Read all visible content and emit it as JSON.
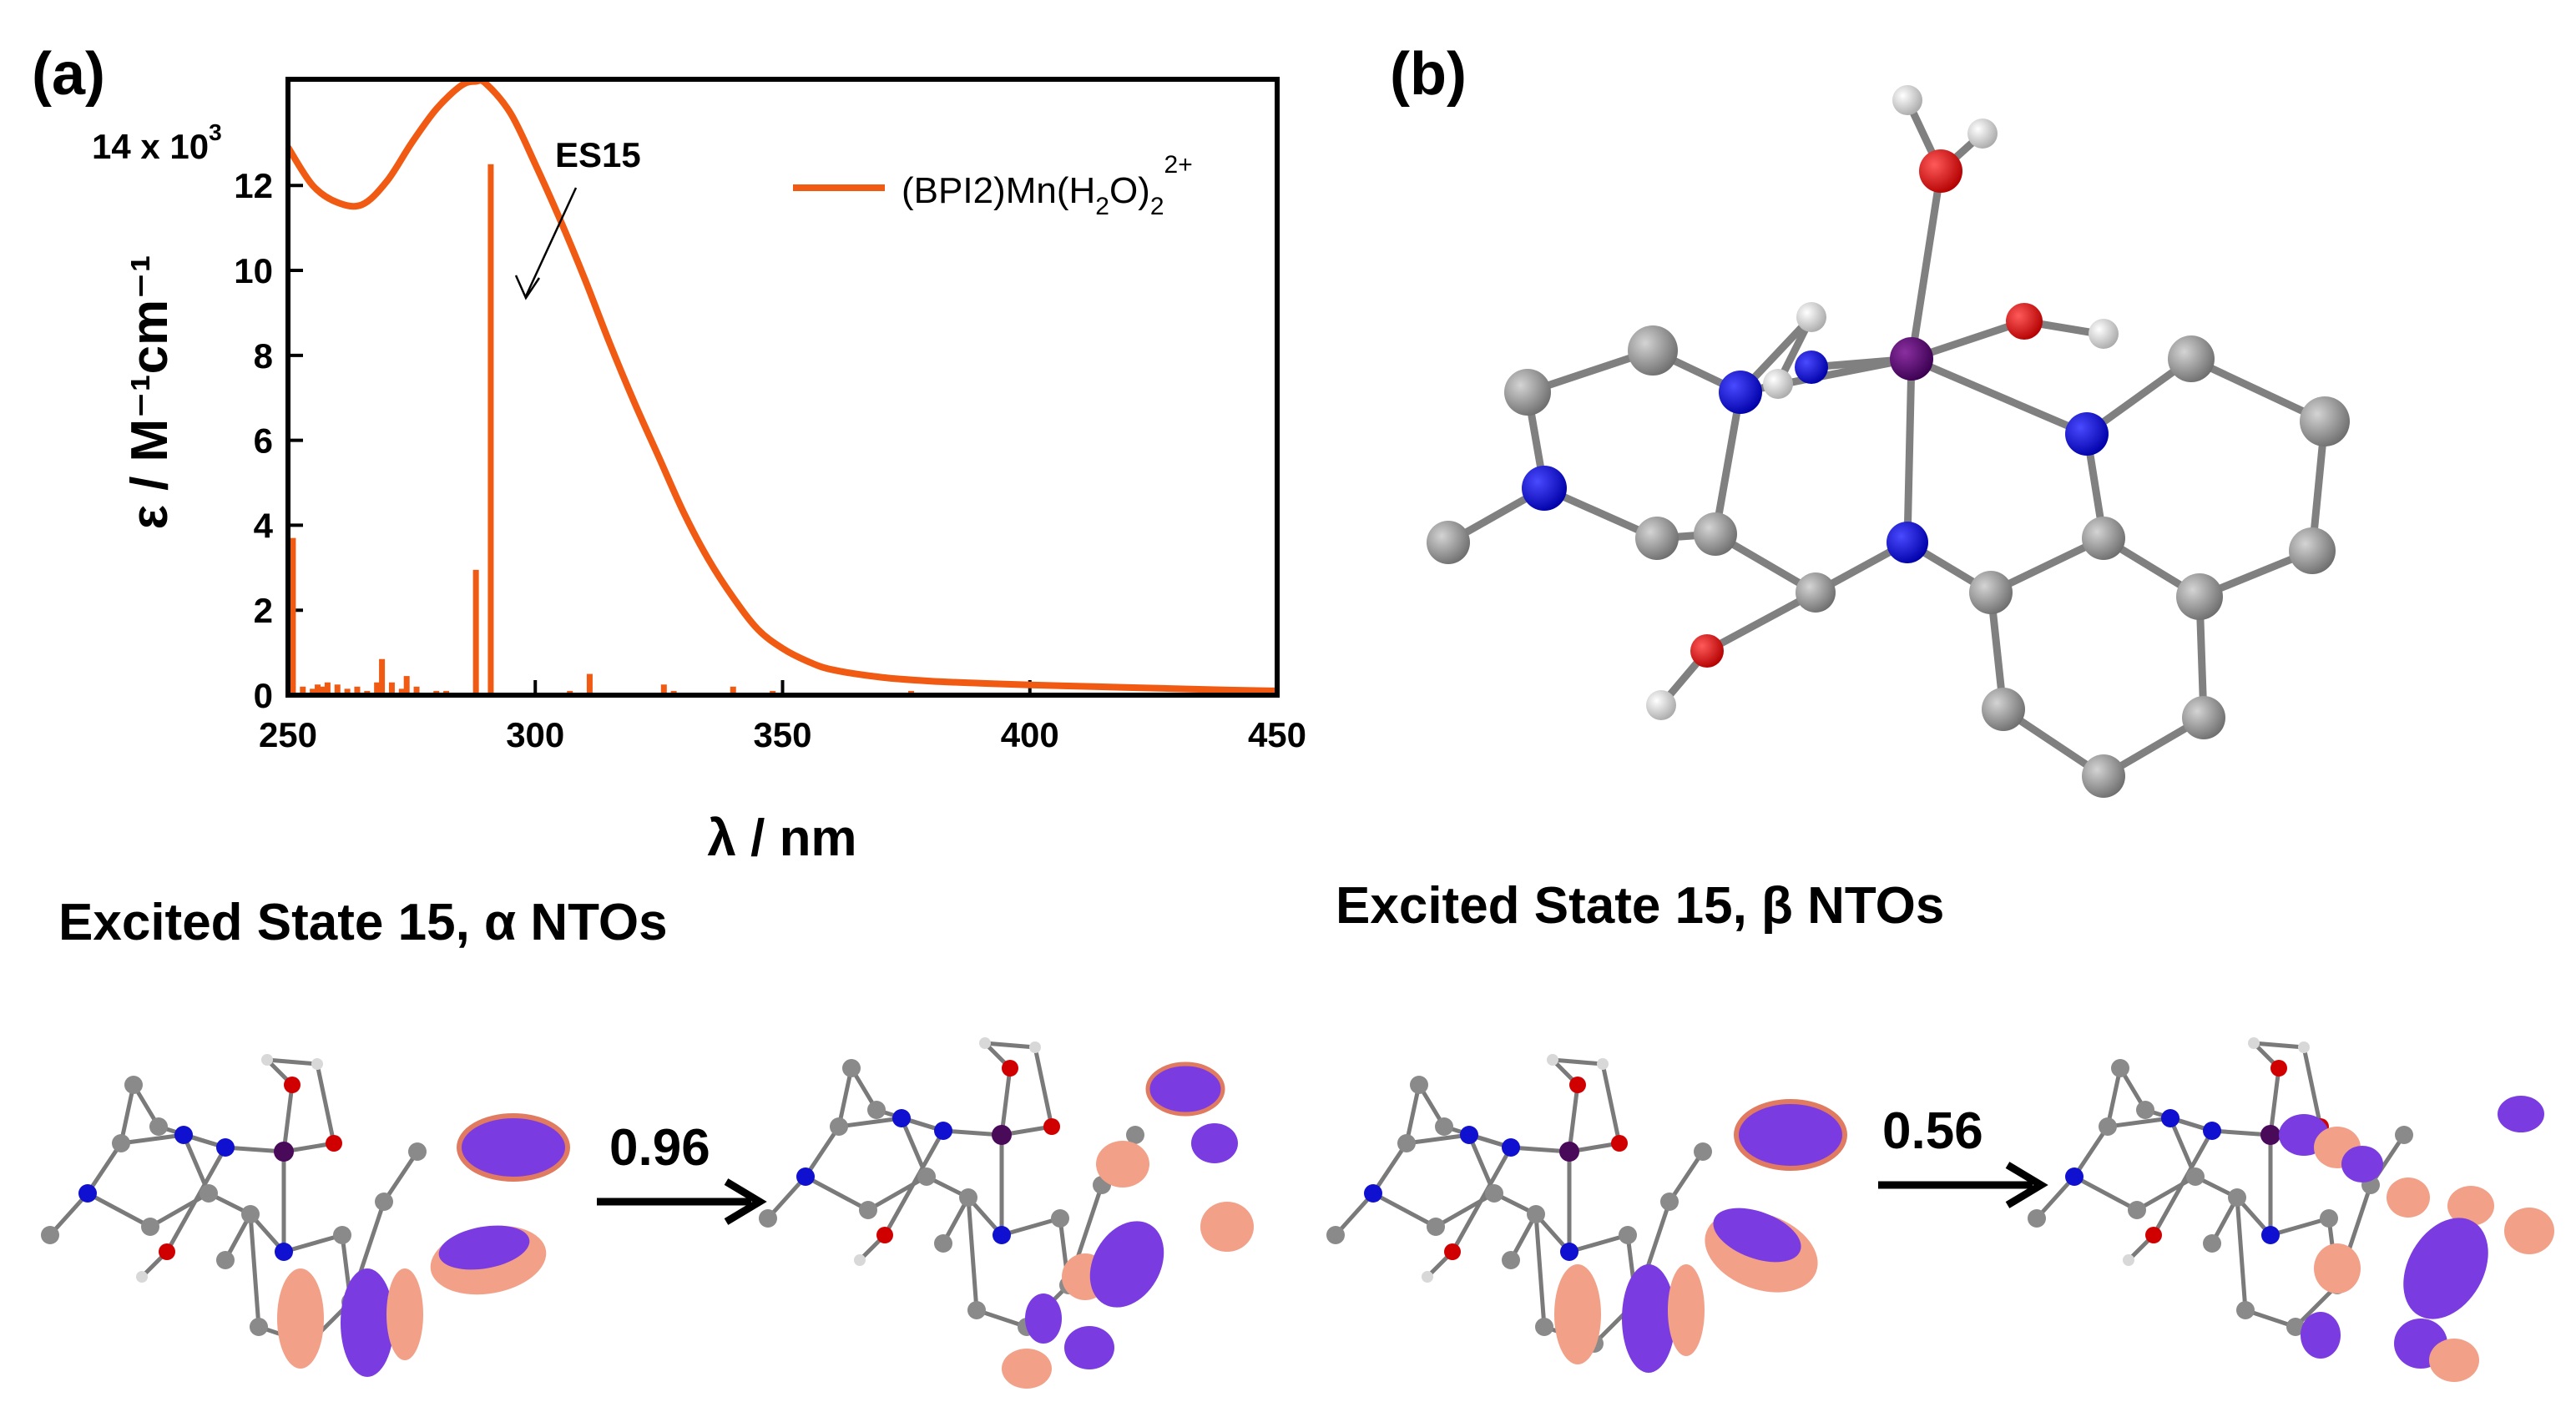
{
  "panels": {
    "a_label": "(a)",
    "b_label": "(b)"
  },
  "chart_data": {
    "type": "line",
    "xlabel": "λ / nm",
    "ylabel": "ε / M⁻¹cm⁻¹",
    "y_multiplier": "14 x 10",
    "y_multiplier_exp": "3",
    "xlim": [
      250,
      450
    ],
    "ylim": [
      0,
      14.5
    ],
    "xticks": [
      250,
      300,
      350,
      400,
      450
    ],
    "yticks": [
      0,
      2,
      4,
      6,
      8,
      10,
      12
    ],
    "legend": {
      "position": "top-right",
      "base": "(BPI2)Mn(H",
      "sub1": "2",
      "mid": "O)",
      "sub2": "2",
      "sup": "2+"
    },
    "series": [
      {
        "color": "#f05a12",
        "x": [
          250,
          255,
          260,
          265,
          270,
          275,
          280,
          285,
          288,
          290,
          295,
          300,
          305,
          310,
          315,
          320,
          325,
          330,
          335,
          340,
          345,
          350,
          355,
          360,
          370,
          380,
          390,
          400,
          420,
          440,
          450
        ],
        "y": [
          12.9,
          12.0,
          11.6,
          11.55,
          12.1,
          13.0,
          13.8,
          14.35,
          14.45,
          14.4,
          13.7,
          12.5,
          11.2,
          9.8,
          8.3,
          6.9,
          5.6,
          4.3,
          3.2,
          2.3,
          1.55,
          1.1,
          0.8,
          0.6,
          0.42,
          0.33,
          0.28,
          0.24,
          0.18,
          0.12,
          0.1
        ]
      }
    ],
    "sticks": {
      "color": "#f05a12",
      "x": [
        251,
        253,
        255,
        256,
        257,
        258,
        260,
        262,
        264,
        266,
        268,
        269,
        271,
        273,
        274,
        276,
        280,
        282,
        288,
        291,
        305,
        307,
        311,
        316,
        326,
        328,
        340,
        348,
        360,
        376
      ],
      "y": [
        3.7,
        0.2,
        0.15,
        0.25,
        0.2,
        0.3,
        0.25,
        0.15,
        0.2,
        0.1,
        0.3,
        0.85,
        0.3,
        0.15,
        0.45,
        0.2,
        0.1,
        0.1,
        2.95,
        12.5,
        0.05,
        0.1,
        0.5,
        0.05,
        0.25,
        0.1,
        0.2,
        0.1,
        0.05,
        0.1
      ]
    },
    "annotations": [
      {
        "text": "ES15",
        "x": 295,
        "y": 9.9
      }
    ]
  },
  "nto": {
    "alpha_title": "Excited State 15, α NTOs",
    "beta_title": "Excited State 15, β NTOs",
    "alpha_value": "0.96",
    "beta_value": "0.56"
  }
}
